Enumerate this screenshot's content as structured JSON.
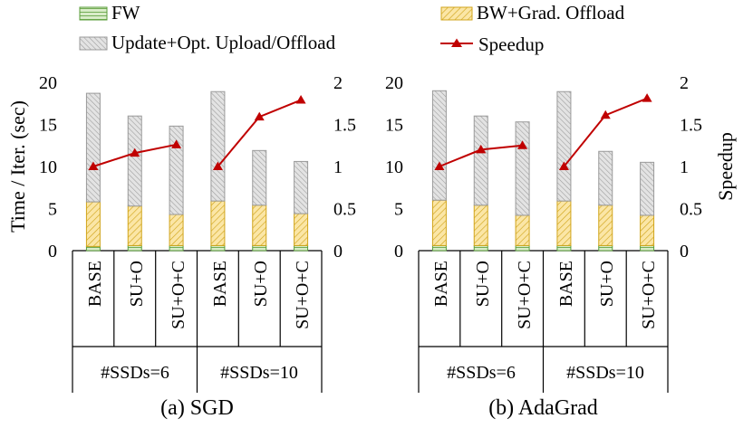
{
  "colors": {
    "fw_fill": "#d9ecc9",
    "fw_stroke": "#5a9d3a",
    "bw_fill": "#fbe6a6",
    "bw_stroke": "#d1a51c",
    "update_fill": "#e3e3e3",
    "update_stroke": "#9a9a9a",
    "speedup_line": "#c00000"
  },
  "legend": {
    "fw": "FW",
    "bw": "BW+Grad. Offload",
    "update": "Update+Opt. Upload/Offload",
    "speedup": "Speedup"
  },
  "chart_data": [
    {
      "type": "bar",
      "stacked": true,
      "title": "(a) SGD",
      "ylabel": "Time / Iter. (sec)",
      "y2label": "",
      "ylim": [
        0,
        20
      ],
      "y2lim": [
        0,
        2
      ],
      "yticks": [
        "0",
        "5",
        "10",
        "15",
        "20"
      ],
      "y2ticks": [
        "0",
        "0.5",
        "1",
        "1.5",
        "2"
      ],
      "categories": [
        "BASE",
        "SU+O",
        "SU+O+C",
        "BASE",
        "SU+O",
        "SU+O+C"
      ],
      "groups": [
        {
          "label": "#SSDs=6",
          "span": 3
        },
        {
          "label": "#SSDs=10",
          "span": 3
        }
      ],
      "series": [
        {
          "name": "FW",
          "values": [
            0.5,
            0.6,
            0.6,
            0.6,
            0.6,
            0.6
          ]
        },
        {
          "name": "BW+Grad. Offload",
          "values": [
            5.3,
            4.7,
            3.7,
            5.3,
            4.8,
            3.8
          ]
        },
        {
          "name": "Update+Opt. Upload/Offload",
          "values": [
            12.9,
            10.7,
            10.5,
            13.0,
            6.5,
            6.2
          ]
        },
        {
          "name": "Speedup",
          "axis": "right",
          "values": [
            1.0,
            1.16,
            1.26,
            1.0,
            1.59,
            1.79
          ]
        }
      ],
      "grid": false
    },
    {
      "type": "bar",
      "stacked": true,
      "title": "(b) AdaGrad",
      "ylabel": "",
      "y2label": "Speedup",
      "ylim": [
        0,
        20
      ],
      "y2lim": [
        0,
        2
      ],
      "yticks": [
        "0",
        "5",
        "10",
        "15",
        "20"
      ],
      "y2ticks": [
        "0",
        "0.5",
        "1",
        "1.5",
        "2"
      ],
      "categories": [
        "BASE",
        "SU+O",
        "SU+O+C",
        "BASE",
        "SU+O",
        "SU+O+C"
      ],
      "groups": [
        {
          "label": "#SSDs=6",
          "span": 3
        },
        {
          "label": "#SSDs=10",
          "span": 3
        }
      ],
      "series": [
        {
          "name": "FW",
          "values": [
            0.6,
            0.6,
            0.6,
            0.6,
            0.6,
            0.6
          ]
        },
        {
          "name": "BW+Grad. Offload",
          "values": [
            5.4,
            4.8,
            3.6,
            5.3,
            4.8,
            3.6
          ]
        },
        {
          "name": "Update+Opt. Upload/Offload",
          "values": [
            13.0,
            10.6,
            11.1,
            13.0,
            6.4,
            6.3
          ]
        },
        {
          "name": "Speedup",
          "axis": "right",
          "values": [
            1.0,
            1.2,
            1.25,
            1.0,
            1.61,
            1.81
          ]
        }
      ],
      "grid": false
    }
  ]
}
